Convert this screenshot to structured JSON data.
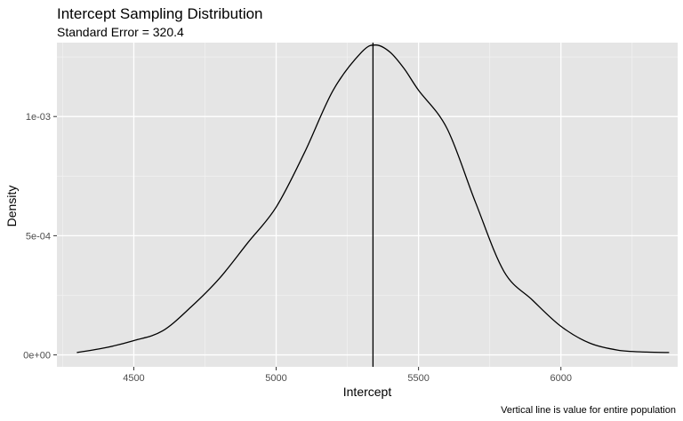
{
  "chart_data": {
    "type": "line",
    "title": "Intercept Sampling Distribution",
    "subtitle": "Standard Error = 320.4",
    "xlabel": "Intercept",
    "ylabel": "Density",
    "caption": "Vertical line is value for entire population",
    "xlim": [
      4230,
      6410
    ],
    "ylim": [
      -5e-05,
      0.00131
    ],
    "x_ticks": [
      {
        "value": 4500,
        "label": "4500"
      },
      {
        "value": 5000,
        "label": "5000"
      },
      {
        "value": 5500,
        "label": "5500"
      },
      {
        "value": 6000,
        "label": "6000"
      }
    ],
    "y_ticks": [
      {
        "value": 0,
        "label": "0e+00"
      },
      {
        "value": 0.0005,
        "label": "5e-04"
      },
      {
        "value": 0.001,
        "label": "1e-03"
      }
    ],
    "grid": true,
    "vline": {
      "x": 5340,
      "label": "population value"
    },
    "series": [
      {
        "name": "density",
        "x": [
          4300,
          4400,
          4500,
          4600,
          4700,
          4800,
          4900,
          5000,
          5100,
          5200,
          5300,
          5350,
          5400,
          5450,
          5500,
          5600,
          5700,
          5800,
          5900,
          6000,
          6100,
          6200,
          6300,
          6380
        ],
        "y": [
          1e-05,
          3e-05,
          6e-05,
          0.0001,
          0.0002,
          0.00032,
          0.00047,
          0.00062,
          0.00085,
          0.00111,
          0.00127,
          0.0013,
          0.00127,
          0.0012,
          0.00111,
          0.00095,
          0.00064,
          0.00035,
          0.00023,
          0.00012,
          5e-05,
          2e-05,
          1.2e-05,
          1e-05
        ]
      }
    ],
    "colors": {
      "panel": "#e5e5e5",
      "grid_major": "#ffffff",
      "grid_minor": "#f1f1f1",
      "line": "#000000",
      "tick_text": "#4d4d4d"
    }
  }
}
